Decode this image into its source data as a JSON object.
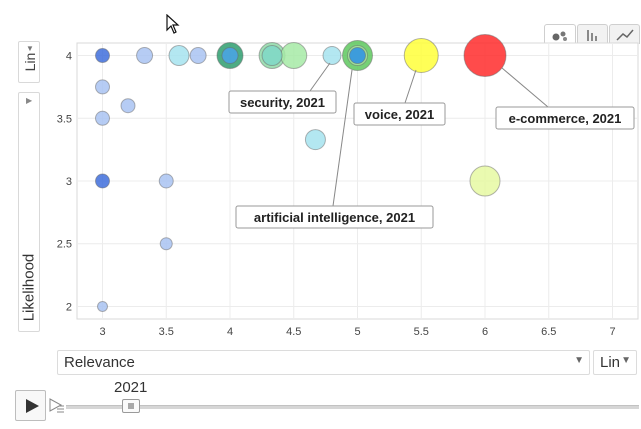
{
  "toolbar": {
    "tabs": [
      {
        "name": "bubble-chart-tab-icon",
        "active": true
      },
      {
        "name": "bar-chart-tab-icon",
        "active": false
      },
      {
        "name": "line-chart-tab-icon",
        "active": false
      }
    ]
  },
  "y_scale": {
    "label": "Lin",
    "arrow": "▼"
  },
  "y_collapse": {
    "arrow": "▶"
  },
  "x_scale": {
    "label": "Lin",
    "arrow": "▼"
  },
  "x_selector": {
    "value": "Relevance",
    "arrow": "▼"
  },
  "y_axis_title": "Likelihood",
  "timeline": {
    "year": "2021",
    "progress": 0.12
  },
  "chart_data": {
    "type": "scatter",
    "xlabel": "Relevance",
    "ylabel": "Likelihood",
    "xlim": [
      2.8,
      7.2
    ],
    "ylim": [
      1.9,
      4.1
    ],
    "xticks": [
      "3",
      "3.5",
      "4",
      "4.5",
      "5",
      "5.5",
      "6",
      "6.5",
      "7"
    ],
    "yticks": [
      "2",
      "2.5",
      "3",
      "3.5",
      "4"
    ],
    "grid": true,
    "points": [
      {
        "x": 3,
        "y": 4,
        "r": 7,
        "color": "#3f6fdc"
      },
      {
        "x": 3.33,
        "y": 4,
        "r": 8,
        "color": "#a9c3f2"
      },
      {
        "x": 3.6,
        "y": 4,
        "r": 10,
        "color": "#a6e3ef"
      },
      {
        "x": 3.75,
        "y": 4,
        "r": 8,
        "color": "#a9c3f2"
      },
      {
        "x": 4,
        "y": 4,
        "r": 13,
        "color": "#2e9e6e"
      },
      {
        "x": 4,
        "y": 4,
        "r": 8,
        "color": "#4aa3e8"
      },
      {
        "x": 4.33,
        "y": 4,
        "r": 13,
        "color": "#8fd9a8"
      },
      {
        "x": 4.33,
        "y": 4,
        "r": 10,
        "color": "#7fd8c7"
      },
      {
        "x": 4.5,
        "y": 4,
        "r": 13,
        "color": "#a6eaa6"
      },
      {
        "x": 4.8,
        "y": 4,
        "r": 9,
        "color": "#a6e3ef"
      },
      {
        "x": 5,
        "y": 4,
        "r": 15,
        "color": "#5ec85e"
      },
      {
        "x": 5,
        "y": 4,
        "r": 10,
        "color": "#a8e8a0"
      },
      {
        "x": 5,
        "y": 4,
        "r": 8,
        "color": "#2b8fe6"
      },
      {
        "x": 5.5,
        "y": 4,
        "r": 17,
        "color": "#ffff3a"
      },
      {
        "x": 6,
        "y": 4,
        "r": 21,
        "color": "#ff2b2b"
      },
      {
        "x": 3,
        "y": 3.75,
        "r": 7,
        "color": "#a9c3f2"
      },
      {
        "x": 3.2,
        "y": 3.6,
        "r": 7,
        "color": "#a9c3f2"
      },
      {
        "x": 3,
        "y": 3.5,
        "r": 7,
        "color": "#a9c3f2"
      },
      {
        "x": 4.67,
        "y": 3.33,
        "r": 10,
        "color": "#a6e3ef"
      },
      {
        "x": 3,
        "y": 3,
        "r": 7,
        "color": "#3f6fdc"
      },
      {
        "x": 3.5,
        "y": 3,
        "r": 7,
        "color": "#a9c3f2"
      },
      {
        "x": 6,
        "y": 3,
        "r": 15,
        "color": "#e6f9a2"
      },
      {
        "x": 3.5,
        "y": 2.5,
        "r": 6,
        "color": "#a9c3f2"
      },
      {
        "x": 3,
        "y": 2,
        "r": 5,
        "color": "#a9c3f2"
      }
    ],
    "annotations": [
      {
        "text": "security, 2021",
        "x": 4.8,
        "y": 4
      },
      {
        "text": "voice, 2021",
        "x": 5.5,
        "y": 4
      },
      {
        "text": "e-commerce, 2021",
        "x": 6,
        "y": 4
      },
      {
        "text": "artificial intelligence, 2021",
        "x": 5,
        "y": 4
      }
    ]
  }
}
